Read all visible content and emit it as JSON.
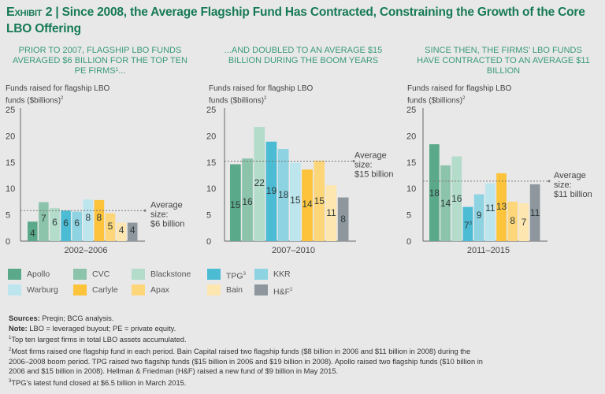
{
  "title": {
    "exhibit": "Exhibit 2",
    "separator": " | ",
    "text": "Since 2008, the Average Flagship Fund Has Contracted, Constraining the Growth of the Core LBO Offering"
  },
  "colors": {
    "Apollo": "#5aa98a",
    "CVC": "#8cc4ab",
    "Blackstone": "#b3dccb",
    "TPG": "#4bbcd3",
    "KKR": "#8ed3e2",
    "Warburg": "#bde5ee",
    "Carlyle": "#fcc33b",
    "Apax": "#fed67a",
    "Bain": "#fee6b0",
    "H&F": "#8d979d"
  },
  "legend": {
    "items": [
      {
        "name": "Apollo",
        "label": "Apollo",
        "sup": ""
      },
      {
        "name": "CVC",
        "label": "CVC",
        "sup": ""
      },
      {
        "name": "Blackstone",
        "label": "Blackstone",
        "sup": ""
      },
      {
        "name": "TPG",
        "label": "TPG",
        "sup": "3"
      },
      {
        "name": "KKR",
        "label": "KKR",
        "sup": ""
      },
      {
        "name": "Warburg",
        "label": "Warburg",
        "sup": ""
      },
      {
        "name": "Carlyle",
        "label": "Carlyle",
        "sup": ""
      },
      {
        "name": "Apax",
        "label": "Apax",
        "sup": ""
      },
      {
        "name": "Bain",
        "label": "Bain",
        "sup": ""
      },
      {
        "name": "H&F",
        "label": "H&F",
        "sup": "2"
      }
    ]
  },
  "chart_data": [
    {
      "type": "bar",
      "heading": "Prior to 2007, flagship LBO funds averaged $6 billion for the top ten PE firms¹...",
      "ylabel": "Funds raised for flagship LBO funds ($billions)",
      "ylabel_sup": "2",
      "xlabel": "2002–2006",
      "ylim": [
        0,
        25
      ],
      "yticks": [
        0,
        5,
        10,
        15,
        20,
        25
      ],
      "categories": [
        "Apollo",
        "CVC",
        "Blackstone",
        "TPG",
        "KKR",
        "Warburg",
        "Carlyle",
        "Apax",
        "Bain",
        "H&F"
      ],
      "values": [
        3.7,
        7.4,
        6.3,
        5.8,
        5.6,
        7.9,
        7.8,
        5.3,
        3.5,
        3.5
      ],
      "labels": [
        "4",
        "7",
        "6",
        "6",
        "6",
        "8",
        "8",
        "5",
        "4",
        "4"
      ],
      "label_sups": [
        "",
        "",
        "",
        "",
        "",
        "",
        "",
        "",
        "",
        ""
      ],
      "average": 5.8,
      "average_label": [
        "Average",
        "size:",
        "$6 billion"
      ]
    },
    {
      "type": "bar",
      "heading": "...and doubled to an average $15 billion during the boom years",
      "ylabel": "Funds raised for flagship LBO funds ($billions)",
      "ylabel_sup": "2",
      "xlabel": "2007–2010",
      "ylim": [
        0,
        25
      ],
      "yticks": [
        0,
        5,
        10,
        15,
        20,
        25
      ],
      "categories": [
        "Apollo",
        "CVC",
        "Blackstone",
        "TPG",
        "KKR",
        "Warburg",
        "Carlyle",
        "Apax",
        "Bain",
        "H&F"
      ],
      "values": [
        14.6,
        15.7,
        21.7,
        18.9,
        17.5,
        14.9,
        13.6,
        15.3,
        10.6,
        8.3
      ],
      "labels": [
        "15",
        "16",
        "22",
        "19",
        "18",
        "15",
        "14",
        "15",
        "11",
        "8"
      ],
      "label_sups": [
        "",
        "",
        "",
        "",
        "",
        "",
        "",
        "",
        "",
        ""
      ],
      "average": 15.2,
      "average_label": [
        "Average",
        "size:",
        "$15 billion"
      ]
    },
    {
      "type": "bar",
      "heading": "Since then, the firms’ LBO funds have contracted to an average $11 billion",
      "ylabel": "Funds raised for flagship LBO funds ($billions)",
      "ylabel_sup": "2",
      "xlabel": "2011–2015",
      "ylim": [
        0,
        25
      ],
      "yticks": [
        0,
        5,
        10,
        15,
        20,
        25
      ],
      "categories": [
        "Apollo",
        "CVC",
        "Blackstone",
        "TPG",
        "KKR",
        "Warburg",
        "Carlyle",
        "Apax",
        "Bain",
        "H&F"
      ],
      "values": [
        18.4,
        14.4,
        16.1,
        6.5,
        8.9,
        11.0,
        12.9,
        7.5,
        7.2,
        10.8
      ],
      "labels": [
        "18",
        "14",
        "16",
        "7",
        "9",
        "11",
        "13",
        "8",
        "7",
        "11"
      ],
      "label_sups": [
        "",
        "",
        "",
        "3",
        "",
        "",
        "",
        "",
        "",
        ""
      ],
      "average": 11.4,
      "average_label": [
        "Average",
        "size:",
        "$11 billion"
      ]
    }
  ],
  "notes": {
    "sources_label": "Sources:",
    "sources_text": " Preqin; BCG analysis.",
    "note_label": "Note:",
    "note_text": " LBO = leveraged buyout; PE = private equity.",
    "footnotes": [
      {
        "num": "1",
        "lines": [
          "Top ten largest firms in total LBO assets accumulated."
        ]
      },
      {
        "num": "2",
        "lines": [
          "Most firms raised one flagship fund in each period. Bain Capital raised two flagship funds ($8 billion in 2006 and $11 billion in 2008) during the",
          "2006–2008 boom period. TPG raised two flagship funds ($15 billion in 2006 and $19 billion in 2008). Apollo raised two flagship funds ($10 billion in",
          "2006 and $15 billion in 2008). Hellman & Friedman (H&F) raised a new fund of $9 billion in May 2015."
        ]
      },
      {
        "num": "3",
        "lines": [
          "TPG’s latest fund closed at $6.5 billion in March 2015."
        ]
      }
    ]
  }
}
